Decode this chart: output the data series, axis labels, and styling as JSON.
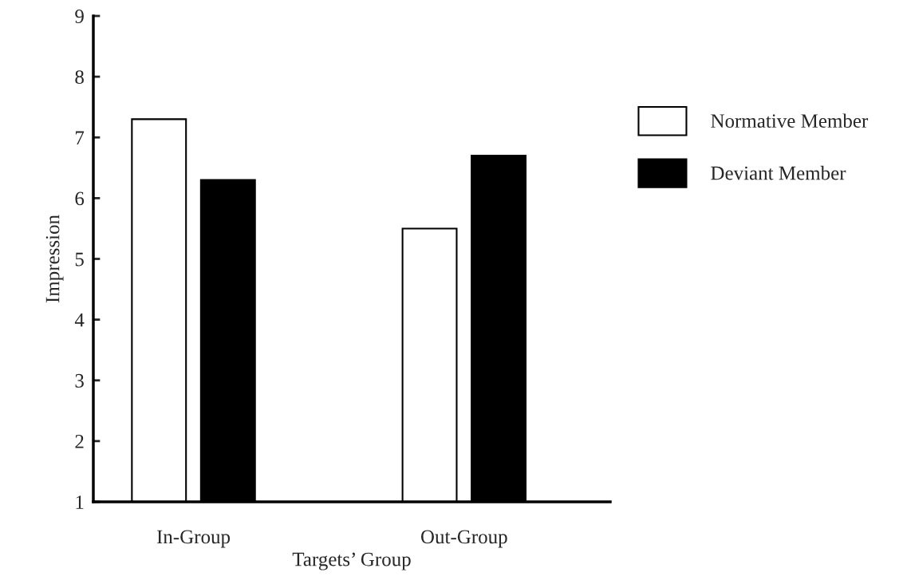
{
  "chart_data": {
    "type": "bar",
    "xlabel": "Targets’ Group",
    "ylabel": "Impression",
    "categories": [
      "In-Group",
      "Out-Group"
    ],
    "series": [
      {
        "name": "Normative Member",
        "color": "#ffffff",
        "values": [
          7.3,
          5.5
        ]
      },
      {
        "name": "Deviant Member",
        "color": "#000000",
        "values": [
          6.3,
          6.7
        ]
      }
    ],
    "ylim": [
      1,
      9
    ],
    "yticks": [
      1,
      2,
      3,
      4,
      5,
      6,
      7,
      8,
      9
    ],
    "grid": false,
    "legend": "right"
  }
}
